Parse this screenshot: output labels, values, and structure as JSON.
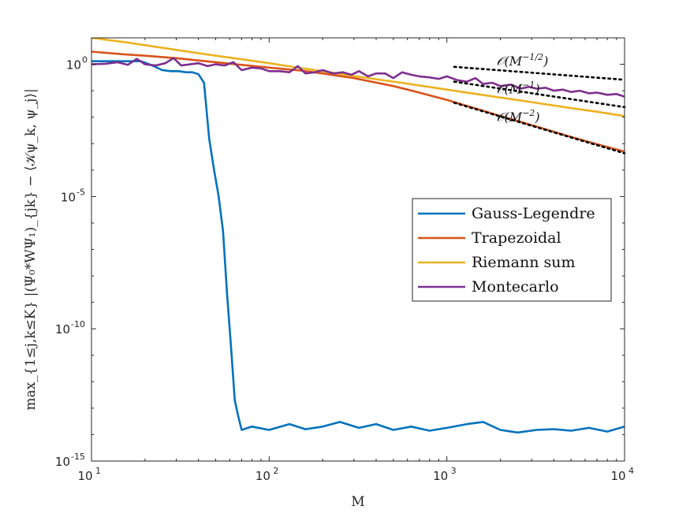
{
  "chart_data": {
    "type": "line",
    "title": "",
    "xlabel": "M",
    "ylabel": "max_{1≤j,k≤K} |(Ψ₀*WΨ₁)_{jk} − ⟨𝒦ψ_k, ψ_j⟩|",
    "xscale": "log",
    "yscale": "log",
    "xlim": [
      10,
      10000
    ],
    "ylim": [
      1e-15,
      10
    ],
    "grid": false,
    "legend_position": "center-right",
    "x_ticks": [
      {
        "base": "10",
        "exp": "1"
      },
      {
        "base": "10",
        "exp": "2"
      },
      {
        "base": "10",
        "exp": "3"
      },
      {
        "base": "10",
        "exp": "4"
      }
    ],
    "y_ticks": [
      {
        "value": 1,
        "label": "10",
        "exp": "0"
      },
      {
        "value": 1e-05,
        "label": "10",
        "exp": "-5"
      },
      {
        "value": 1e-10,
        "label": "10",
        "exp": "-10"
      },
      {
        "value": 1e-15,
        "label": "10",
        "exp": "-15"
      }
    ],
    "y_tick_text": [
      "10",
      "10",
      "10",
      "10"
    ],
    "series": [
      {
        "name": "Gauss-Legendre",
        "color": "#0072BD",
        "x": [
          10,
          12,
          15,
          19,
          22,
          25,
          28,
          31,
          34,
          37,
          40,
          43,
          46,
          49,
          52,
          55,
          58,
          61,
          64,
          67,
          70,
          80,
          100,
          130,
          160,
          200,
          250,
          320,
          400,
          500,
          630,
          800,
          1000,
          1300,
          1600,
          2000,
          2500,
          3200,
          4000,
          5000,
          6300,
          8000,
          10000
        ],
        "y": [
          1.3,
          1.3,
          1.3,
          1.3,
          0.9,
          0.6,
          0.55,
          0.55,
          0.5,
          0.5,
          0.42,
          0.2,
          0.0015,
          0.0001,
          1e-05,
          5e-07,
          2e-09,
          2e-11,
          2e-13,
          5e-14,
          1.5e-14,
          2e-14,
          1.5e-14,
          2.5e-14,
          1.6e-14,
          2e-14,
          3e-14,
          1.8e-14,
          2.5e-14,
          1.5e-14,
          2e-14,
          1.4e-14,
          1.8e-14,
          2.5e-14,
          3e-14,
          1.5e-14,
          1.2e-14,
          1.5e-14,
          1.6e-14,
          1.4e-14,
          1.8e-14,
          1.3e-14,
          2e-14
        ]
      },
      {
        "name": "Trapezoidal",
        "color": "#D95319",
        "x": [
          10,
          15,
          20,
          30,
          50,
          70,
          100,
          150,
          200,
          300,
          500,
          700,
          1000,
          1500,
          2000,
          3000,
          5000,
          7000,
          10000
        ],
        "y": [
          3,
          2.4,
          2.1,
          1.7,
          1.2,
          0.95,
          0.75,
          0.58,
          0.45,
          0.3,
          0.15,
          0.085,
          0.045,
          0.02,
          0.011,
          0.005,
          0.0018,
          0.00095,
          0.0005
        ]
      },
      {
        "name": "Riemann sum",
        "color": "#EDB120",
        "x": [
          10,
          15,
          20,
          30,
          50,
          70,
          100,
          150,
          200,
          300,
          500,
          1000,
          2000,
          3000,
          5000,
          7000,
          10000
        ],
        "y": [
          10,
          7,
          5.3,
          3.5,
          2.1,
          1.55,
          1.1,
          0.72,
          0.55,
          0.36,
          0.22,
          0.11,
          0.055,
          0.037,
          0.022,
          0.016,
          0.011
        ]
      },
      {
        "name": "Montecarlo",
        "color": "#7E2F8E",
        "x": [
          10,
          12,
          14,
          16,
          18,
          20,
          23,
          26,
          29,
          32,
          36,
          40,
          45,
          50,
          56,
          63,
          70,
          80,
          90,
          100,
          115,
          130,
          145,
          160,
          180,
          200,
          230,
          260,
          290,
          320,
          360,
          400,
          450,
          500,
          560,
          630,
          700,
          800,
          900,
          1000,
          1150,
          1300,
          1450,
          1600,
          1800,
          2000,
          2300,
          2600,
          2900,
          3200,
          3600,
          4000,
          4500,
          5000,
          5600,
          6300,
          7000,
          8000,
          9000,
          10000
        ],
        "y": [
          1.0,
          1.05,
          1.2,
          0.95,
          1.6,
          1.0,
          0.9,
          1.1,
          1.7,
          0.9,
          1.0,
          1.1,
          0.85,
          1.0,
          0.9,
          1.2,
          0.6,
          0.75,
          0.7,
          0.55,
          0.55,
          0.5,
          0.85,
          0.45,
          0.5,
          0.6,
          0.45,
          0.5,
          0.4,
          0.55,
          0.35,
          0.45,
          0.45,
          0.3,
          0.5,
          0.4,
          0.35,
          0.32,
          0.28,
          0.35,
          0.25,
          0.22,
          0.3,
          0.18,
          0.2,
          0.15,
          0.17,
          0.12,
          0.14,
          0.12,
          0.13,
          0.1,
          0.11,
          0.09,
          0.1,
          0.08,
          0.085,
          0.07,
          0.075,
          0.06
        ]
      }
    ],
    "reference_lines": [
      {
        "label": "𝒪(M",
        "sup": "−1/2",
        "close": ")",
        "x": [
          1100,
          10000
        ],
        "y": [
          0.8,
          0.26
        ]
      },
      {
        "label": "𝒪(M",
        "sup": "−1",
        "close": ")",
        "x": [
          1100,
          10000
        ],
        "y": [
          0.22,
          0.024
        ]
      },
      {
        "label": "𝒪(M",
        "sup": "−2",
        "close": ")",
        "x": [
          1100,
          10000
        ],
        "y": [
          0.035,
          0.00043
        ]
      }
    ],
    "annotation_positions": [
      {
        "x": 1900,
        "y": 0.9
      },
      {
        "x": 1900,
        "y": 0.08
      },
      {
        "x": 1900,
        "y": 0.007
      }
    ]
  }
}
